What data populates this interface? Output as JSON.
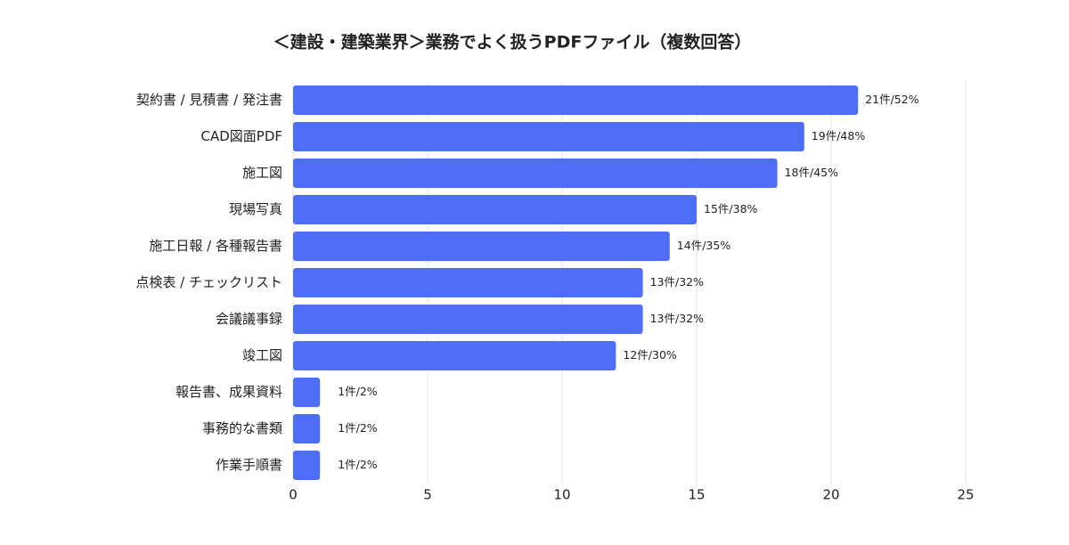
{
  "chart_data": {
    "type": "bar",
    "orientation": "horizontal",
    "title": "＜建設・建築業界＞業務でよく扱うPDFファイル（複数回答）",
    "categories": [
      "契約書 / 見積書 / 発注書",
      "CAD図面PDF",
      "施工図",
      "現場写真",
      "施工日報 / 各種報告書",
      "点検表 / チェックリスト",
      "会議議事録",
      "竣工図",
      "報告書、成果資料",
      "事務的な書類",
      "作業手順書"
    ],
    "values": [
      21,
      19,
      18,
      15,
      14,
      13,
      13,
      12,
      1,
      1,
      1
    ],
    "value_labels": [
      "21件/52%",
      "19件/48%",
      "18件/45%",
      "15件/38%",
      "14件/35%",
      "13件/32%",
      "13件/32%",
      "12件/30%",
      "1件/2%",
      "1件/2%",
      "1件/2%"
    ],
    "color": "#4f6ef7",
    "xlim": [
      0,
      25
    ],
    "xticks": [
      0,
      5,
      10,
      15,
      20,
      25
    ],
    "grid": true
  }
}
